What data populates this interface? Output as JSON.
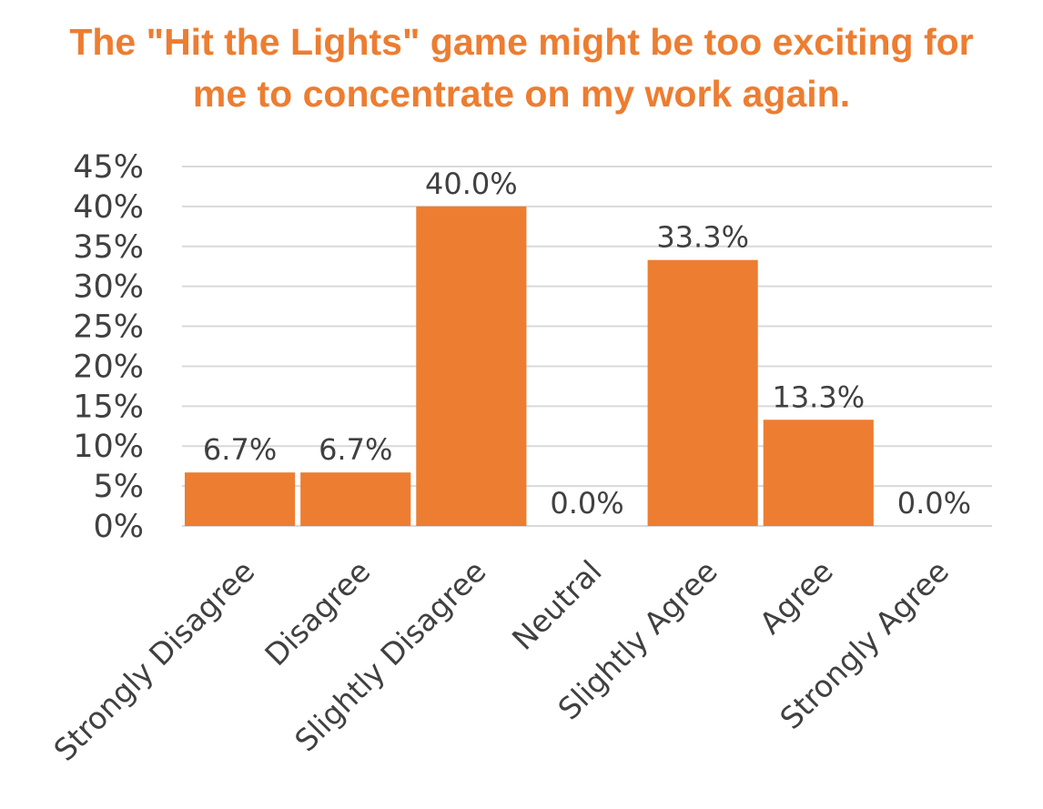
{
  "chart_data": {
    "type": "bar",
    "title": "The \"Hit the Lights\" game might be too exciting for me to concentrate on my work again.",
    "title_lines": [
      "The \"Hit the Lights\" game might be too exciting for",
      "me to concentrate on my work again."
    ],
    "categories": [
      "Strongly Disagree",
      "Disagree",
      "Slightly Disagree",
      "Neutral",
      "Slightly Agree",
      "Agree",
      "Strongly Agree"
    ],
    "values": [
      6.7,
      6.7,
      40.0,
      0.0,
      33.3,
      13.3,
      0.0
    ],
    "data_labels": [
      "6.7%",
      "6.7%",
      "40.0%",
      "0.0%",
      "33.3%",
      "13.3%",
      "0.0%"
    ],
    "y_ticks": [
      0,
      5,
      10,
      15,
      20,
      25,
      30,
      35,
      40,
      45
    ],
    "y_tick_labels": [
      "0%",
      "5%",
      "10%",
      "15%",
      "20%",
      "25%",
      "30%",
      "35%",
      "40%",
      "45%"
    ],
    "ylim": [
      0,
      45
    ],
    "xlabel": "",
    "ylabel": "",
    "grid": true,
    "legend": "none",
    "colors": {
      "bar": "#ED7D31",
      "title": "#ED7D31",
      "grid": "#D9D9D9",
      "text": "#404040"
    }
  }
}
